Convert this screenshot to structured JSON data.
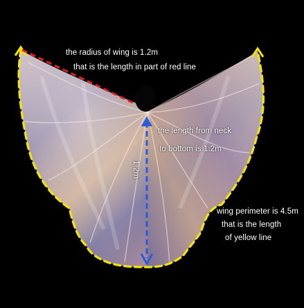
{
  "annotations": {
    "radius_line1": "the radius of wing is 1.2m",
    "radius_line2": "that is the length in part of red line",
    "neck_line1": "the length from neck",
    "neck_line2": "to bottom is 1.2m",
    "vertical_measure": "1.2m",
    "perimeter_line1": "wing perimeter is 4.5m",
    "perimeter_line2": "that is the length",
    "perimeter_line3": "of yellow line"
  },
  "colors": {
    "background": "#000000",
    "radius_line": "#e02020",
    "neck_arrow": "#2a5bd8",
    "perimeter_line": "#f2e600",
    "label_text": "#ffffff"
  },
  "icons": {
    "neck_arrow": "double-headed-arrow"
  }
}
